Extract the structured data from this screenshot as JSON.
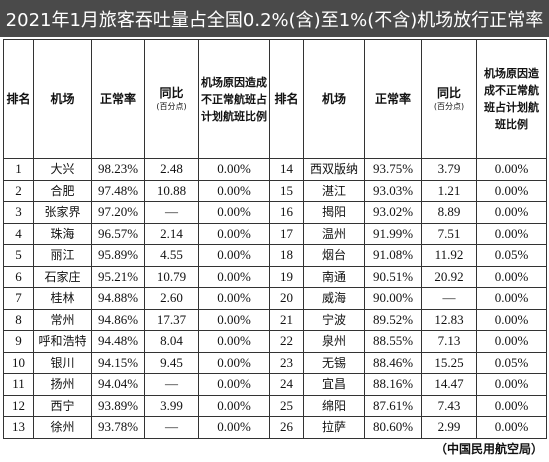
{
  "title": "2021年1月旅客吞吐量占全国0.2%(含)至1%(不含)机场放行正常率",
  "headers": {
    "rank": "排名",
    "airport": "机场",
    "rate": "正常率",
    "yoy": "同比",
    "yoy_unit": "(百分点)",
    "reason": "机场原因造成不正常航班占计划航班比例"
  },
  "rows": [
    {
      "left": {
        "rank": "1",
        "airport": "大兴",
        "rate": "98.23%",
        "yoy": "2.48",
        "reason": "0.00%"
      },
      "right": {
        "rank": "14",
        "airport": "西双版纳",
        "rate": "93.75%",
        "yoy": "3.79",
        "reason": "0.00%"
      }
    },
    {
      "left": {
        "rank": "2",
        "airport": "合肥",
        "rate": "97.48%",
        "yoy": "10.88",
        "reason": "0.00%"
      },
      "right": {
        "rank": "15",
        "airport": "湛江",
        "rate": "93.03%",
        "yoy": "1.21",
        "reason": "0.00%"
      }
    },
    {
      "left": {
        "rank": "3",
        "airport": "张家界",
        "rate": "97.20%",
        "yoy": "—",
        "reason": "0.00%"
      },
      "right": {
        "rank": "16",
        "airport": "揭阳",
        "rate": "93.02%",
        "yoy": "8.89",
        "reason": "0.00%"
      }
    },
    {
      "left": {
        "rank": "4",
        "airport": "珠海",
        "rate": "96.57%",
        "yoy": "2.14",
        "reason": "0.00%"
      },
      "right": {
        "rank": "17",
        "airport": "温州",
        "rate": "91.99%",
        "yoy": "7.51",
        "reason": "0.00%"
      }
    },
    {
      "left": {
        "rank": "5",
        "airport": "丽江",
        "rate": "95.89%",
        "yoy": "4.55",
        "reason": "0.00%"
      },
      "right": {
        "rank": "18",
        "airport": "烟台",
        "rate": "91.08%",
        "yoy": "11.92",
        "reason": "0.05%"
      }
    },
    {
      "left": {
        "rank": "6",
        "airport": "石家庄",
        "rate": "95.21%",
        "yoy": "10.79",
        "reason": "0.00%"
      },
      "right": {
        "rank": "19",
        "airport": "南通",
        "rate": "90.51%",
        "yoy": "20.92",
        "reason": "0.00%"
      }
    },
    {
      "left": {
        "rank": "7",
        "airport": "桂林",
        "rate": "94.88%",
        "yoy": "2.60",
        "reason": "0.00%"
      },
      "right": {
        "rank": "20",
        "airport": "威海",
        "rate": "90.00%",
        "yoy": "—",
        "reason": "0.00%"
      }
    },
    {
      "left": {
        "rank": "8",
        "airport": "常州",
        "rate": "94.86%",
        "yoy": "17.37",
        "reason": "0.00%"
      },
      "right": {
        "rank": "21",
        "airport": "宁波",
        "rate": "89.52%",
        "yoy": "12.83",
        "reason": "0.00%"
      }
    },
    {
      "left": {
        "rank": "9",
        "airport": "呼和浩特",
        "rate": "94.48%",
        "yoy": "8.04",
        "reason": "0.00%"
      },
      "right": {
        "rank": "22",
        "airport": "泉州",
        "rate": "88.55%",
        "yoy": "7.13",
        "reason": "0.00%"
      }
    },
    {
      "left": {
        "rank": "10",
        "airport": "银川",
        "rate": "94.15%",
        "yoy": "9.45",
        "reason": "0.00%"
      },
      "right": {
        "rank": "23",
        "airport": "无锡",
        "rate": "88.46%",
        "yoy": "15.25",
        "reason": "0.05%"
      }
    },
    {
      "left": {
        "rank": "11",
        "airport": "扬州",
        "rate": "94.04%",
        "yoy": "—",
        "reason": "0.00%"
      },
      "right": {
        "rank": "24",
        "airport": "宜昌",
        "rate": "88.16%",
        "yoy": "14.47",
        "reason": "0.00%"
      }
    },
    {
      "left": {
        "rank": "12",
        "airport": "西宁",
        "rate": "93.89%",
        "yoy": "3.99",
        "reason": "0.00%"
      },
      "right": {
        "rank": "25",
        "airport": "绵阳",
        "rate": "87.61%",
        "yoy": "7.43",
        "reason": "0.00%"
      }
    },
    {
      "left": {
        "rank": "13",
        "airport": "徐州",
        "rate": "93.78%",
        "yoy": "—",
        "reason": "0.00%"
      },
      "right": {
        "rank": "26",
        "airport": "拉萨",
        "rate": "80.60%",
        "yoy": "2.99",
        "reason": "0.00%"
      }
    }
  ],
  "source": "（中国民用航空局）"
}
